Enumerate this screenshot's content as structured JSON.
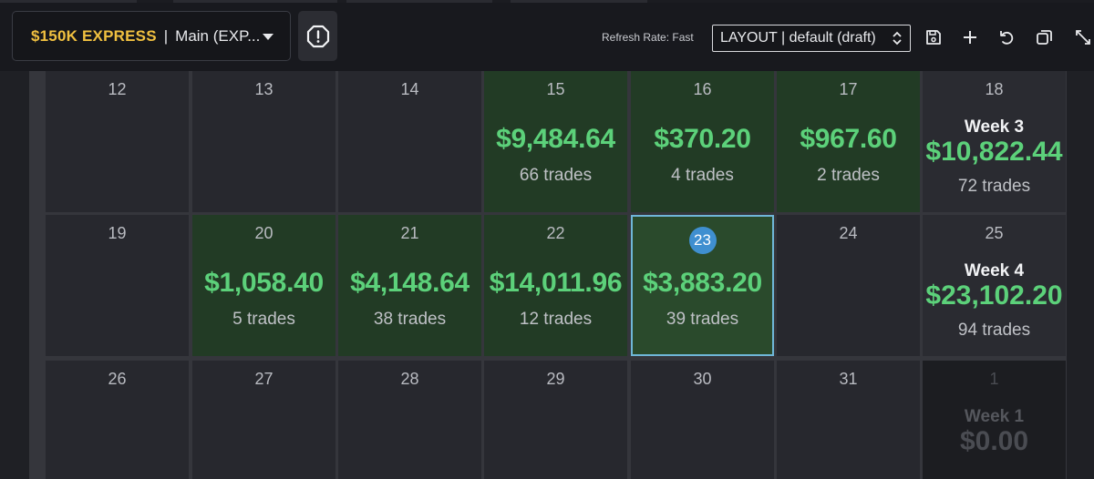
{
  "header": {
    "account_name": "$150K EXPRESS",
    "separator": "|",
    "account_sub": "Main (EXP...",
    "refresh_rate": "Refresh Rate: Fast",
    "layout_value": "LAYOUT | default (draft)"
  },
  "colors": {
    "accent_gold": "#f0c040",
    "profit_green": "#5cd17a",
    "today_blue": "#3f8fd0"
  },
  "icons": {
    "alert": "alert-octagon-icon",
    "save": "save-icon",
    "add": "plus-icon",
    "undo": "undo-icon",
    "windows": "windows-icon",
    "expand": "expand-icon"
  },
  "calendar": {
    "rows": [
      {
        "days": [
          {
            "day": "12"
          },
          {
            "day": "13"
          },
          {
            "day": "14"
          },
          {
            "day": "15",
            "pnl": "$9,484.64",
            "trades": "66 trades"
          },
          {
            "day": "16",
            "pnl": "$370.20",
            "trades": "4 trades"
          },
          {
            "day": "17",
            "pnl": "$967.60",
            "trades": "2 trades"
          }
        ],
        "week": {
          "day": "18",
          "label": "Week 3",
          "pnl": "$10,822.44",
          "trades": "72 trades"
        }
      },
      {
        "days": [
          {
            "day": "19"
          },
          {
            "day": "20",
            "pnl": "$1,058.40",
            "trades": "5 trades"
          },
          {
            "day": "21",
            "pnl": "$4,148.64",
            "trades": "38 trades"
          },
          {
            "day": "22",
            "pnl": "$14,011.96",
            "trades": "12 trades"
          },
          {
            "day": "23",
            "pnl": "$3,883.20",
            "trades": "39 trades",
            "today": true
          },
          {
            "day": "24"
          }
        ],
        "week": {
          "day": "25",
          "label": "Week 4",
          "pnl": "$23,102.20",
          "trades": "94 trades"
        }
      },
      {
        "days": [
          {
            "day": "26"
          },
          {
            "day": "27"
          },
          {
            "day": "28"
          },
          {
            "day": "29"
          },
          {
            "day": "30"
          },
          {
            "day": "31"
          }
        ],
        "week": {
          "day": "1",
          "label": "Week 1",
          "pnl": "$0.00",
          "dim": true
        }
      }
    ]
  }
}
